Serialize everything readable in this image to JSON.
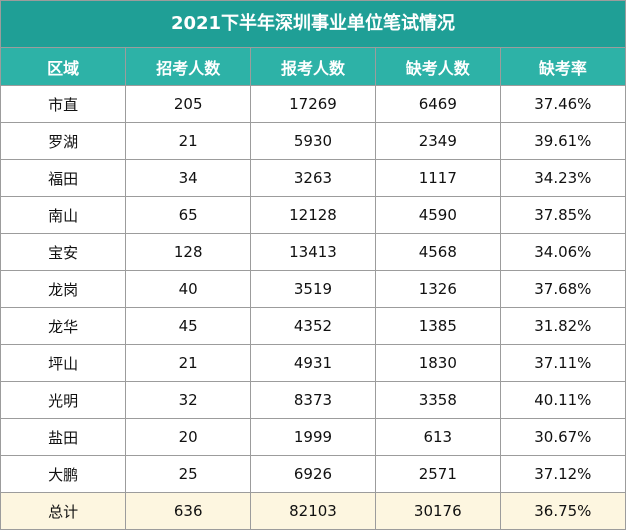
{
  "header": {
    "title": "2021下半年深圳事业单位笔试情况"
  },
  "table": {
    "columns": [
      "区域",
      "招考人数",
      "报考人数",
      "缺考人数",
      "缺考率"
    ],
    "rows": [
      [
        "市直",
        "205",
        "17269",
        "6469",
        "37.46%"
      ],
      [
        "罗湖",
        "21",
        "5930",
        "2349",
        "39.61%"
      ],
      [
        "福田",
        "34",
        "3263",
        "1117",
        "34.23%"
      ],
      [
        "南山",
        "65",
        "12128",
        "4590",
        "37.85%"
      ],
      [
        "宝安",
        "128",
        "13413",
        "4568",
        "34.06%"
      ],
      [
        "龙岗",
        "40",
        "3519",
        "1326",
        "37.68%"
      ],
      [
        "龙华",
        "45",
        "4352",
        "1385",
        "31.82%"
      ],
      [
        "坪山",
        "21",
        "4931",
        "1830",
        "37.11%"
      ],
      [
        "光明",
        "32",
        "8373",
        "3358",
        "40.11%"
      ],
      [
        "盐田",
        "20",
        "1999",
        "613",
        "30.67%"
      ],
      [
        "大鹏",
        "25",
        "6926",
        "2571",
        "37.12%"
      ],
      [
        "总计",
        "636",
        "82103",
        "30176",
        "36.75%"
      ]
    ]
  }
}
